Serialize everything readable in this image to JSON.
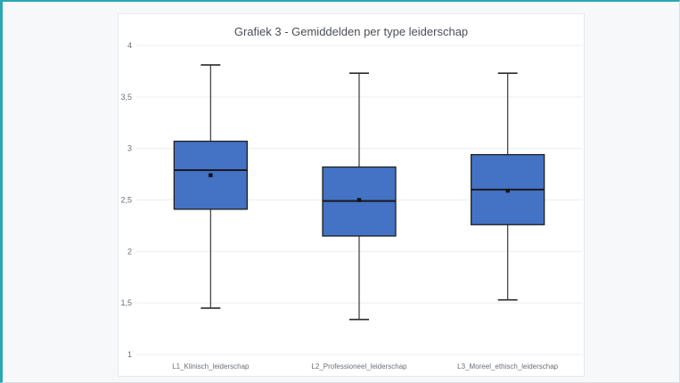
{
  "chart_data": {
    "type": "boxplot",
    "title": "Grafiek 3 - Gemiddelden per type leiderschap",
    "xlabel": "",
    "ylabel": "",
    "ylim": [
      1,
      4
    ],
    "y_ticks": [
      "1",
      "1,5",
      "2",
      "2,5",
      "3",
      "3,5",
      "4"
    ],
    "y_tick_values": [
      1,
      1.5,
      2,
      2.5,
      3,
      3.5,
      4
    ],
    "grid": true,
    "legend": "none",
    "box_color": "#4472c4",
    "box_edge_color": "#1f1f1f",
    "categories": [
      "L1_Klinisch_leiderschap",
      "L2_Professioneel_leiderschap",
      "L3_Moreel_ethisch_leiderschap"
    ],
    "boxes": [
      {
        "category": "L1_Klinisch_leiderschap",
        "min": 1.45,
        "q1": 2.41,
        "median": 2.79,
        "q3": 3.07,
        "max": 3.81,
        "mean": 2.74
      },
      {
        "category": "L2_Professioneel_leiderschap",
        "min": 1.34,
        "q1": 2.15,
        "median": 2.49,
        "q3": 2.82,
        "max": 3.73,
        "mean": 2.5
      },
      {
        "category": "L3_Moreel_ethisch_leiderschap",
        "min": 1.53,
        "q1": 2.26,
        "median": 2.6,
        "q3": 2.94,
        "max": 3.73,
        "mean": 2.59
      }
    ]
  }
}
